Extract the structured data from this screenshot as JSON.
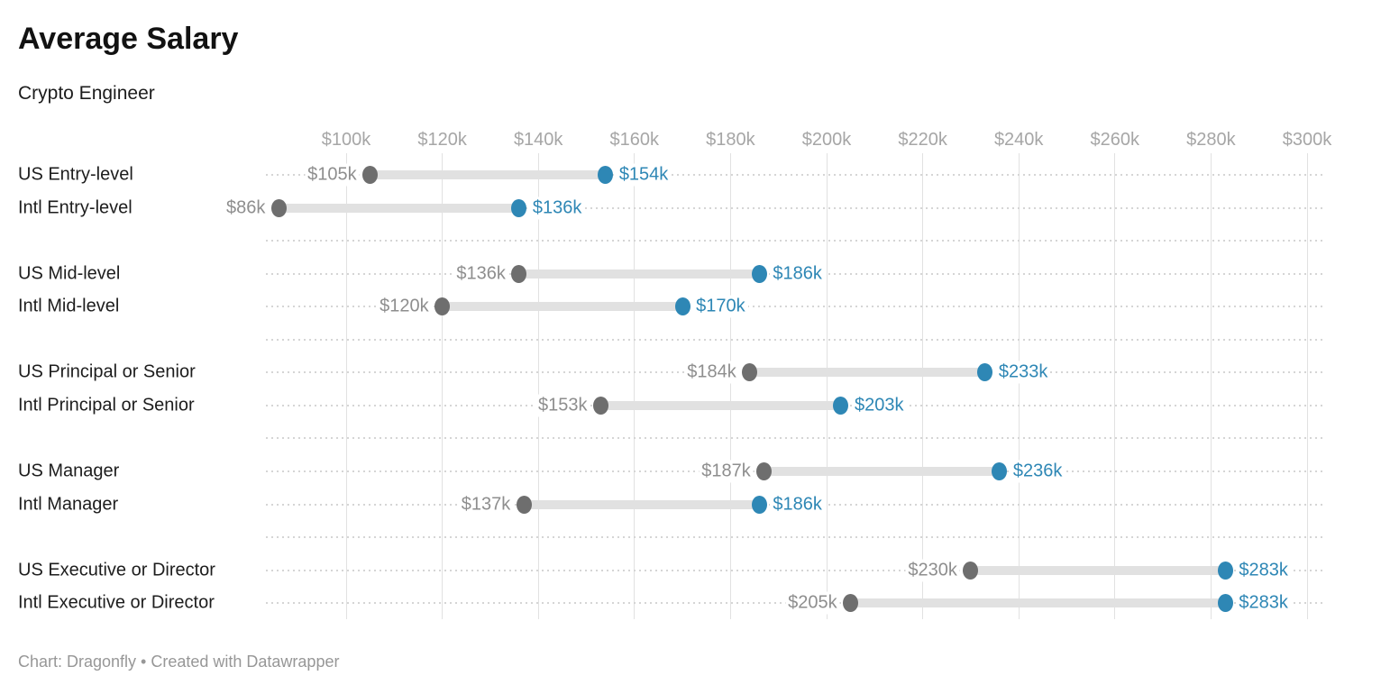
{
  "header": {
    "title": "Average Salary",
    "subtitle": "Crypto Engineer"
  },
  "footer": {
    "text": "Chart: Dragonfly • Created with Datawrapper"
  },
  "chart_data": {
    "type": "range",
    "title": "Average Salary",
    "subtitle": "Crypto Engineer",
    "value_prefix": "$",
    "value_suffix": "k",
    "x_ticks": [
      100,
      120,
      140,
      160,
      180,
      200,
      220,
      240,
      260,
      280,
      300
    ],
    "x_tick_labels": [
      "$100k",
      "$120k",
      "$140k",
      "$160k",
      "$180k",
      "$200k",
      "$220k",
      "$240k",
      "$260k",
      "$280k",
      "$300k"
    ],
    "xlim": [
      83,
      304
    ],
    "grid": "vertical-solid-plus-row-dotted-leaders",
    "legend": "none",
    "groups": [
      {
        "rows": [
          {
            "label": "US Entry-level",
            "start": 105,
            "end": 154,
            "start_label": "$105k",
            "end_label": "$154k"
          },
          {
            "label": "Intl Entry-level",
            "start": 86,
            "end": 136,
            "start_label": "$86k",
            "end_label": "$136k"
          }
        ]
      },
      {
        "rows": [
          {
            "label": "US Mid-level",
            "start": 136,
            "end": 186,
            "start_label": "$136k",
            "end_label": "$186k"
          },
          {
            "label": "Intl Mid-level",
            "start": 120,
            "end": 170,
            "start_label": "$120k",
            "end_label": "$170k"
          }
        ]
      },
      {
        "rows": [
          {
            "label": "US Principal or Senior",
            "start": 184,
            "end": 233,
            "start_label": "$184k",
            "end_label": "$233k"
          },
          {
            "label": "Intl Principal or Senior",
            "start": 153,
            "end": 203,
            "start_label": "$153k",
            "end_label": "$203k"
          }
        ]
      },
      {
        "rows": [
          {
            "label": "US Manager",
            "start": 187,
            "end": 236,
            "start_label": "$187k",
            "end_label": "$236k"
          },
          {
            "label": "Intl Manager",
            "start": 137,
            "end": 186,
            "start_label": "$137k",
            "end_label": "$186k"
          }
        ]
      },
      {
        "rows": [
          {
            "label": "US Executive or Director",
            "start": 230,
            "end": 283,
            "start_label": "$230k",
            "end_label": "$283k"
          },
          {
            "label": "Intl Executive or Director",
            "start": 205,
            "end": 283,
            "start_label": "$205k",
            "end_label": "$283k"
          }
        ]
      }
    ],
    "colors": {
      "start_dot": "#6e6e6e",
      "end_dot": "#2e87b5",
      "start_value_label": "#8e8e8e",
      "end_value_label": "#2e87b5",
      "range_bar": "#e1e1e1",
      "gridline": "#e1e1e1",
      "row_dotted": "#d5d5d5",
      "axis_label": "#a6a6a6",
      "category_label": "#1d1d1d",
      "footer_text": "#979797"
    }
  }
}
